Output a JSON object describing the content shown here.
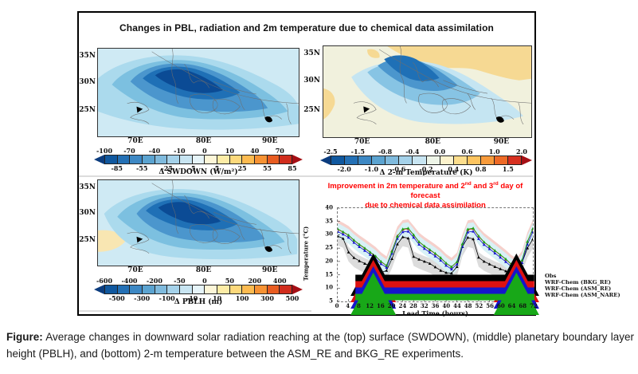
{
  "figure_box": {
    "title": "Changes in PBL, radiation and 2m temperature due to chemical data assimilation"
  },
  "annotation": {
    "color": "#ff0000",
    "line1_prefix": "Improvement in 2m temperature and 2",
    "line1_sup1": "nd",
    "line1_mid": " and 3",
    "line1_sup2": "rd",
    "line1_suffix": " day of forecast",
    "line2": "due to chemical data assimilation"
  },
  "caption": {
    "label": "Figure:",
    "text": " Average changes in downward solar radiation reaching at the (top) surface (SWDOWN), (middle) planetary boundary layer height (PBLH), and (bottom) 2-m temperature between the ASM_RE and BKG_RE experiments."
  },
  "chart_data": [
    {
      "id": "swdown",
      "type": "heatmap",
      "variable": "Δ SWDOWN (W/m²)",
      "x_ticks": [
        "70E",
        "80E",
        "90E"
      ],
      "y_ticks": [
        "35N",
        "30N",
        "25N"
      ],
      "colorbar": {
        "ticks_top": [
          "-100",
          "-70",
          "-40",
          "-10",
          "0",
          "10",
          "40",
          "70"
        ],
        "ticks_bottom": [
          "-85",
          "-55",
          "-25",
          "-5",
          "5",
          "25",
          "55",
          "85"
        ],
        "palette": [
          "#10589f",
          "#2470b5",
          "#3d88c4",
          "#5ba3d0",
          "#7fbadd",
          "#a5d2ea",
          "#c8e5f2",
          "#e6f4f9",
          "#fdf6d8",
          "#fdeca6",
          "#fdd97c",
          "#fdbb50",
          "#f79233",
          "#e85c21",
          "#d02c1c"
        ],
        "arrow_left": "#0b3c7e",
        "arrow_right": "#a50f15"
      },
      "description": "Negative SWDOWN changes (blues, down to -85 to -100 W/m²) centered over the Indo-Gangetic plain of northern India."
    },
    {
      "id": "temp2m",
      "type": "heatmap",
      "variable": "Δ 2-m Temperature (K)",
      "x_ticks": [
        "70E",
        "80E",
        "90E"
      ],
      "y_ticks": [
        "35N",
        "30N",
        "25N"
      ],
      "colorbar": {
        "ticks_top": [
          "-2.5",
          "-1.5",
          "-0.8",
          "-0.4",
          "0.0",
          "0.6",
          "1.0",
          "2.0"
        ],
        "ticks_bottom": [
          "-2.0",
          "-1.0",
          "-0.6",
          "-0.2",
          "0.4",
          "0.8",
          "1.5"
        ],
        "palette": [
          "#10589f",
          "#2470b5",
          "#3d88c4",
          "#5ba3d0",
          "#7fbadd",
          "#a5d2ea",
          "#c8e5f2",
          "#eef5e8",
          "#fdf3cd",
          "#fdde8d",
          "#fdc45f",
          "#f89b3b",
          "#ee6a26",
          "#d73020"
        ],
        "arrow_left": "#0b3c7e",
        "arrow_right": "#a50f15"
      },
      "description": "2-m temperature cooling (blues, -0.4 to -2.0 K) over northwest India with weak warm patches (tan) along the Himalaya."
    },
    {
      "id": "pblh",
      "type": "heatmap",
      "variable": "Δ PBLH (m)",
      "x_ticks": [
        "70E",
        "80E",
        "90E"
      ],
      "y_ticks": [
        "35N",
        "30N",
        "25N"
      ],
      "colorbar": {
        "ticks_top": [
          "-600",
          "-400",
          "-200",
          "-50",
          "0",
          "50",
          "200",
          "400"
        ],
        "ticks_bottom": [
          "-500",
          "-300",
          "-100",
          "-10",
          "10",
          "100",
          "300",
          "500"
        ],
        "palette": [
          "#10589f",
          "#2470b5",
          "#3d88c4",
          "#5ba3d0",
          "#7fbadd",
          "#a5d2ea",
          "#c8e5f2",
          "#e6f4f9",
          "#fdf6d8",
          "#fdeca6",
          "#fdd97c",
          "#fdbb50",
          "#f79233",
          "#e85c21",
          "#d02c1c"
        ],
        "arrow_left": "#0b3c7e",
        "arrow_right": "#a50f15"
      },
      "description": "PBLH reduction (blues, down to -300 to -500 m) over the Indo-Gangetic plain; small positive patches (pale yellow) near the west coast."
    },
    {
      "id": "t2m_timeseries",
      "type": "line",
      "xlabel": "Lead Time (hours)",
      "ylabel": "Temperature (°C)",
      "xlim": [
        0,
        72
      ],
      "ylim": [
        5,
        40
      ],
      "x_ticks": [
        0,
        4,
        8,
        12,
        16,
        20,
        24,
        28,
        32,
        36,
        40,
        44,
        48,
        52,
        56,
        60,
        64,
        68,
        72
      ],
      "y_ticks": [
        5,
        10,
        15,
        20,
        25,
        30,
        35,
        40
      ],
      "legend_position": "lower left",
      "x": [
        0,
        2,
        4,
        6,
        8,
        10,
        12,
        14,
        16,
        18,
        20,
        22,
        24,
        26,
        28,
        30,
        32,
        34,
        36,
        38,
        40,
        42,
        44,
        46,
        48,
        50,
        52,
        54,
        56,
        58,
        60,
        62,
        64,
        66,
        68,
        70,
        72
      ],
      "series": [
        {
          "name": "Obs",
          "color": "#000000",
          "values": [
            29.5,
            28.6,
            23.5,
            21.4,
            20.2,
            19.2,
            18.3,
            17.1,
            15.8,
            16.6,
            21.0,
            26.5,
            29.2,
            28.7,
            21.8,
            20.8,
            20.0,
            19.2,
            17.9,
            16.6,
            15.8,
            15.6,
            18.0,
            25.5,
            29.0,
            28.4,
            21.5,
            20.0,
            19.0,
            18.0,
            17.2,
            16.4,
            15.6,
            15.9,
            19.5,
            25.0,
            28.4
          ]
        },
        {
          "name": "WRF-Chem (BKG_RE)",
          "color": "#dd1111",
          "values": [
            32.0,
            31.0,
            29.8,
            27.9,
            26.3,
            24.9,
            23.4,
            21.9,
            19.9,
            18.4,
            24.0,
            29.6,
            32.0,
            32.3,
            29.9,
            27.3,
            25.7,
            24.3,
            22.9,
            21.3,
            19.3,
            17.9,
            19.8,
            26.5,
            31.9,
            32.3,
            29.4,
            27.2,
            25.6,
            24.0,
            22.4,
            20.8,
            18.9,
            17.7,
            20.4,
            27.4,
            32.1
          ]
        },
        {
          "name": "WRF-Chem (ASM_RE)",
          "color": "#1515cc",
          "values": [
            31.2,
            30.2,
            29.0,
            27.1,
            25.5,
            24.1,
            22.6,
            21.1,
            19.1,
            17.7,
            23.0,
            28.6,
            31.1,
            31.3,
            29.0,
            26.4,
            24.8,
            23.4,
            22.0,
            20.4,
            18.5,
            17.1,
            19.0,
            25.6,
            31.0,
            31.3,
            28.5,
            26.3,
            24.7,
            23.1,
            21.5,
            19.9,
            18.1,
            16.9,
            19.5,
            26.4,
            31.1
          ]
        },
        {
          "name": "WRF-Chem (ASM_NARE)",
          "color": "#18a818",
          "values": [
            32.2,
            31.1,
            29.9,
            28.0,
            26.4,
            25.0,
            23.5,
            22.0,
            20.0,
            18.5,
            23.8,
            29.4,
            32.2,
            32.5,
            30.0,
            27.4,
            25.8,
            24.4,
            23.0,
            21.4,
            19.4,
            18.0,
            19.9,
            26.6,
            32.1,
            32.5,
            29.6,
            27.3,
            25.7,
            24.1,
            22.5,
            20.9,
            19.0,
            17.8,
            20.5,
            27.5,
            32.3
          ]
        }
      ],
      "bands": [
        {
          "name": "obs-spread",
          "around": "Obs",
          "color": "#dcdcdc",
          "below": 3.5,
          "above": 2.0
        },
        {
          "name": "bkg-spread",
          "around": "WRF-Chem (BKG_RE)",
          "color": "#f6d0cb",
          "below": 1.0,
          "above": 3.5
        },
        {
          "name": "asm-spread",
          "around": "WRF-Chem (ASM_NARE)",
          "color": "#d8f1f6",
          "below": 3.2,
          "above": 2.2
        }
      ]
    }
  ]
}
